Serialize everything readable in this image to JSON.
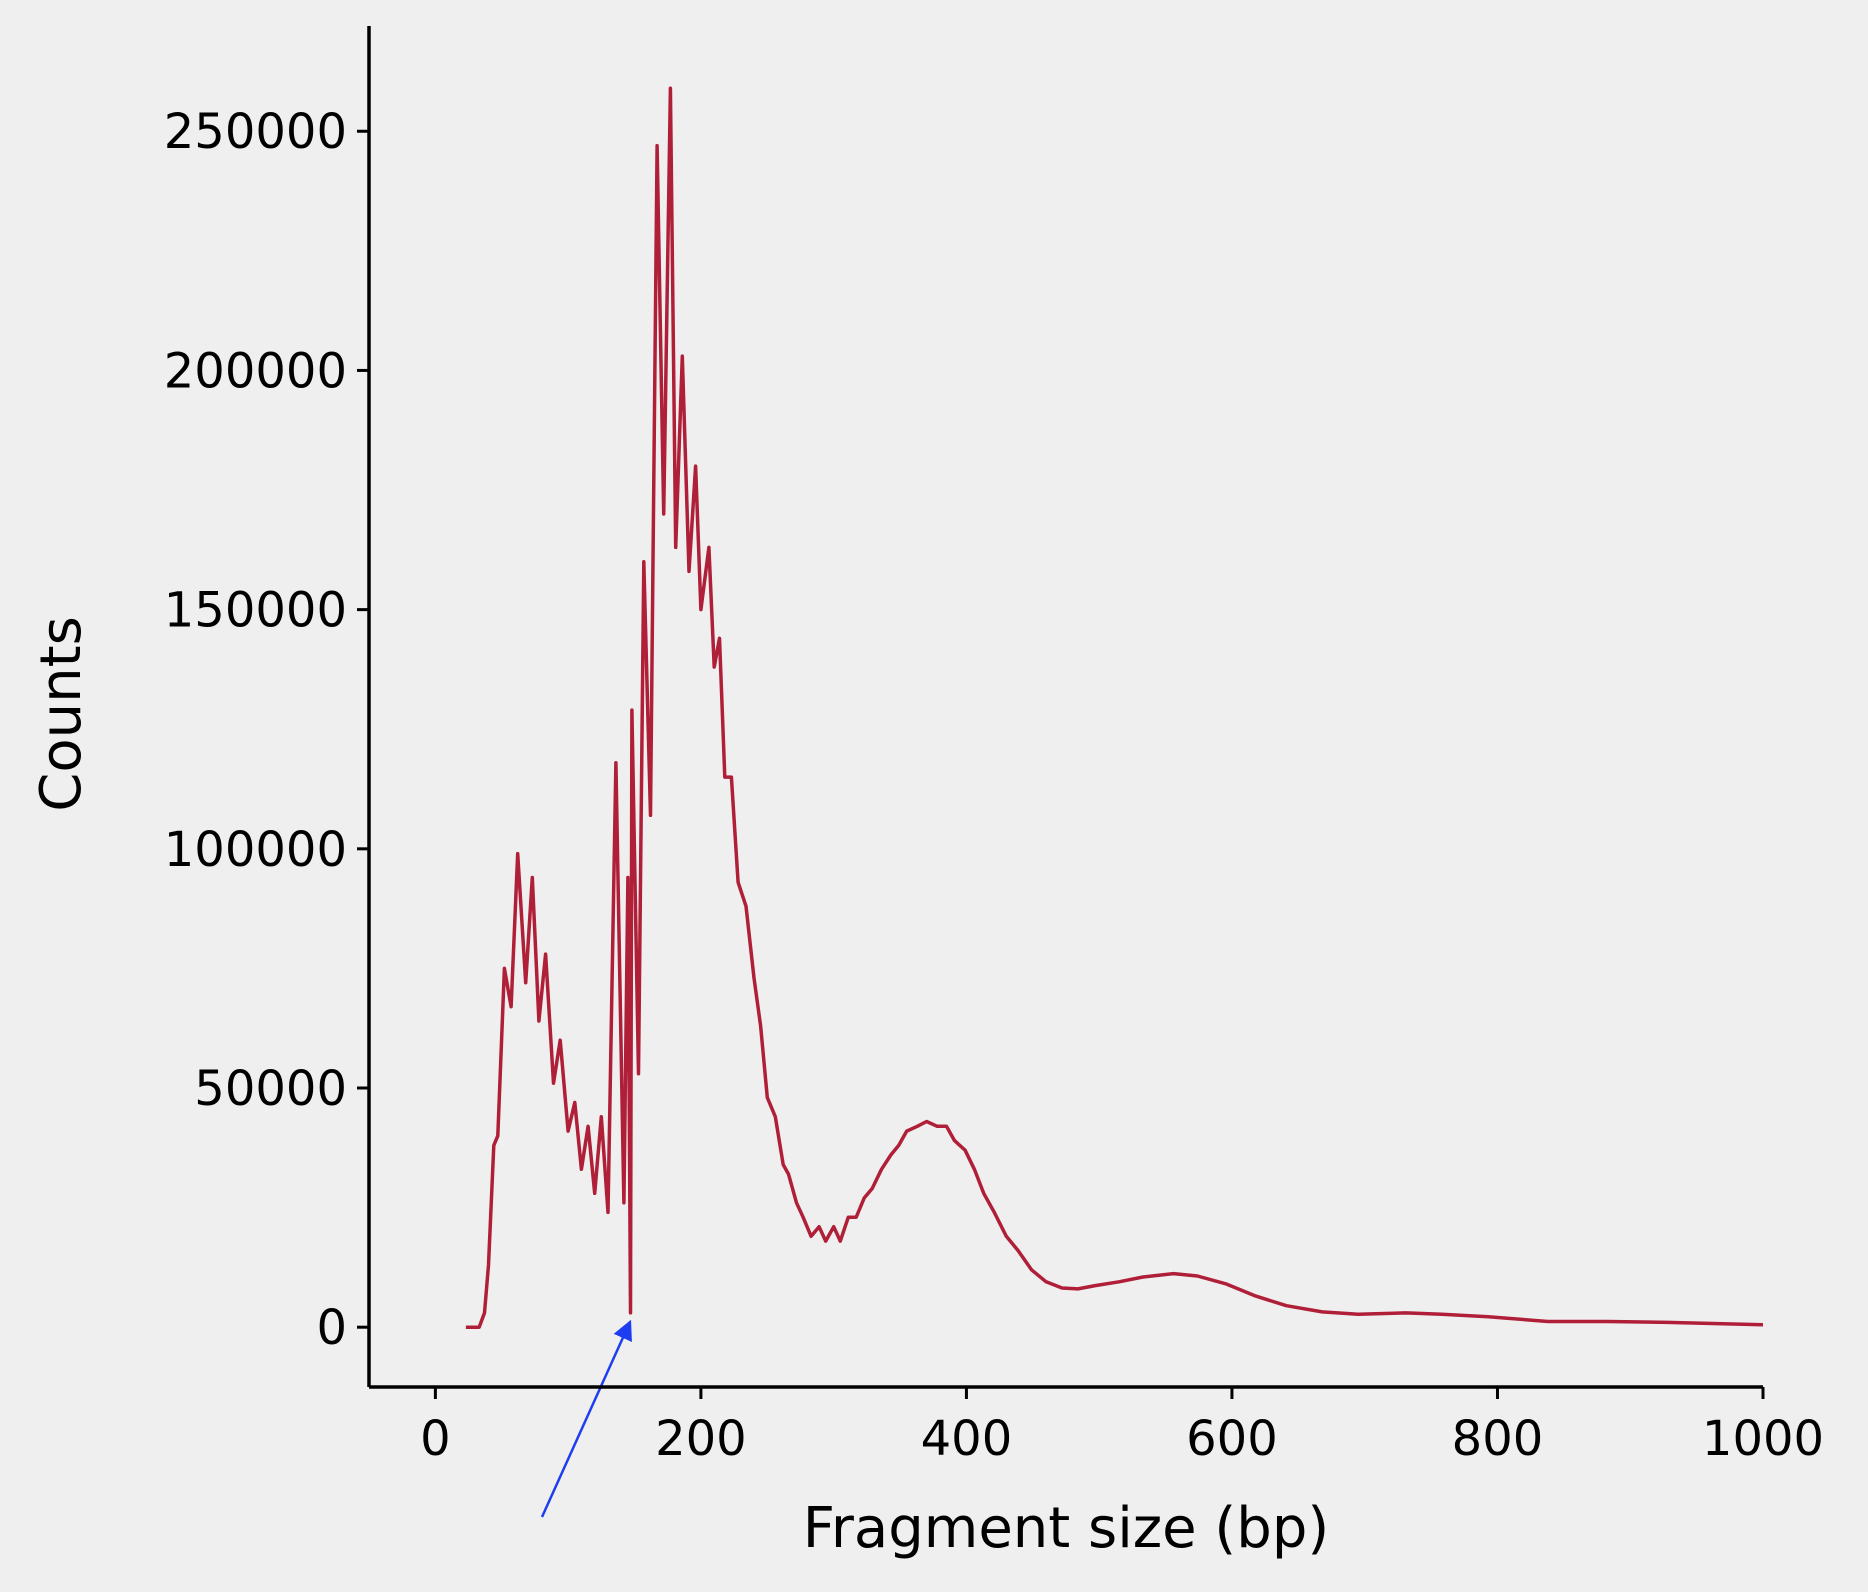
{
  "chart_data": {
    "type": "line",
    "x_label": "Fragment size (bp)",
    "y_label": "Counts",
    "x": [
      23,
      33,
      37,
      40,
      44,
      47,
      52,
      57,
      62,
      68,
      73,
      78,
      83,
      89,
      94,
      100,
      105,
      110,
      115,
      120,
      125,
      130,
      136,
      142,
      145,
      147,
      148,
      153,
      157,
      162,
      167,
      172,
      177,
      181,
      186,
      191,
      196,
      200,
      206,
      210,
      214,
      218,
      223,
      228,
      234,
      240,
      245,
      250,
      256,
      262,
      266,
      272,
      277,
      283,
      289,
      294,
      300,
      305,
      311,
      317,
      323,
      329,
      336,
      343,
      349,
      355,
      363,
      370,
      378,
      385,
      391,
      399,
      406,
      413,
      421,
      430,
      439,
      449,
      460,
      472,
      484,
      497,
      515,
      533,
      556,
      574,
      596,
      618,
      641,
      668,
      695,
      731,
      758,
      793,
      838,
      883,
      928,
      1000
    ],
    "values": [
      0,
      0,
      3000,
      13000,
      38000,
      40000,
      75000,
      67000,
      99000,
      72000,
      94000,
      64000,
      78000,
      51000,
      60000,
      41000,
      47000,
      33000,
      42000,
      28000,
      44000,
      24000,
      118000,
      26000,
      94000,
      3000,
      129000,
      53000,
      160000,
      107000,
      247000,
      170000,
      259000,
      163000,
      203000,
      158000,
      180000,
      150000,
      163000,
      138000,
      144000,
      115000,
      115000,
      93000,
      88000,
      73000,
      63000,
      48000,
      44000,
      34000,
      32000,
      26000,
      23000,
      19000,
      21000,
      18000,
      21000,
      18000,
      23000,
      23000,
      27000,
      29000,
      33000,
      36000,
      38000,
      41000,
      42000,
      43000,
      42000,
      42000,
      39000,
      37000,
      33000,
      28000,
      24000,
      19000,
      16000,
      12000,
      9500,
      8200,
      8000,
      8700,
      9500,
      10500,
      11200,
      10700,
      9000,
      6500,
      4500,
      3200,
      2700,
      3000,
      2700,
      2200,
      1200,
      1200,
      1000,
      500
    ],
    "color": "#b01f38",
    "xlim": [
      -50,
      1000
    ],
    "ylim": [
      -12500,
      272000
    ],
    "xticks": [
      0,
      200,
      400,
      600,
      800,
      1000
    ],
    "yticks": [
      0,
      50000,
      100000,
      150000,
      200000,
      250000
    ],
    "grid": false
  }
}
